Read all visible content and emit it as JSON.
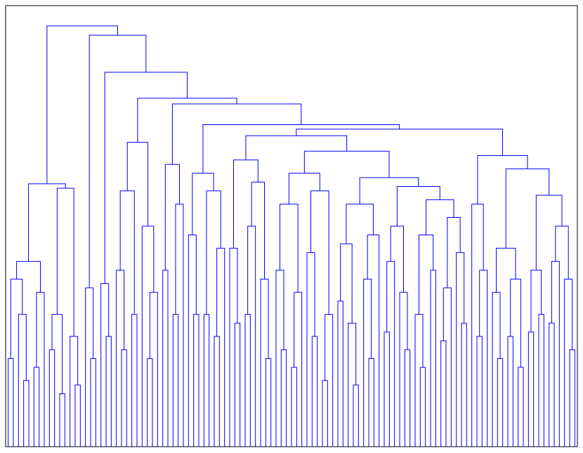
{
  "chart_data": {
    "type": "dendrogram",
    "color": "#0000ff",
    "ylim": [
      0,
      100
    ],
    "tree": [
      95.4,
      [
        59.6,
        [
          42,
          [
            38,
            [
              20,
              0,
              0
            ],
            [
              30,
              0,
              [
                15,
                0,
                0
              ]
            ]
          ],
          [
            35,
            [
              18,
              0,
              0
            ],
            0
          ]
        ],
        [
          58.6,
          [
            30,
            [
              22,
              0,
              0
            ],
            [
              12,
              0,
              0
            ]
          ],
          [
            25,
            0,
            [
              14,
              0,
              0
            ]
          ]
        ]
      ],
      [
        93.3,
        [
          36,
          0,
          [
            20,
            0,
            0
          ]
        ],
        [
          84.9,
          [
            37,
            0,
            [
              25,
              0,
              0
            ]
          ],
          [
            79,
            [
              69,
              [
                58,
                [
                  40,
                  0,
                  [
                    22,
                    0,
                    0
                  ]
                ],
                [
                  30,
                  0,
                  0
                ]
              ],
              [
                50,
                0,
                [
                  35,
                  [
                    20,
                    0,
                    0
                  ],
                  0
                ]
              ]
            ],
            [
              77.7,
              [
                64,
                [
                  40,
                  0,
                  0
                ],
                [
                  55,
                  [
                    30,
                    0,
                    0
                  ],
                  0
                ]
              ],
              [
                73,
                [
                  62,
                  [
                    48,
                    0,
                    [
                      30,
                      0,
                      0
                    ]
                  ],
                  [
                    58,
                    [
                      30,
                      0,
                      0
                    ],
                    [
                      45,
                      [
                        25,
                        0,
                        0
                      ],
                      0
                    ]
                  ]
                ],
                [
                  72,
                  [
                    70.5,
                    [
                      65,
                      [
                        45,
                        0,
                        [
                          28,
                          0,
                          0
                        ]
                      ],
                      [
                        60,
                        [
                          50,
                          [
                            30,
                            0,
                            0
                          ],
                          0
                        ],
                        [
                          38,
                          0,
                          [
                            20,
                            0,
                            0
                          ]
                        ]
                      ]
                    ],
                    [
                      67,
                      [
                        62,
                        [
                          55,
                          [
                            40,
                            0,
                            [
                              22,
                              0,
                              0
                            ]
                          ],
                          [
                            35,
                            [
                              18,
                              0,
                              0
                            ],
                            0
                          ]
                        ],
                        [
                          58,
                          [
                            44,
                            0,
                            [
                              25,
                              0,
                              0
                            ]
                          ],
                          [
                            30,
                            [
                              15,
                              0,
                              0
                            ],
                            0
                          ]
                        ]
                      ],
                      [
                        61,
                        [
                          55,
                          [
                            46,
                            [
                              33,
                              0,
                              0
                            ],
                            [
                              28,
                              0,
                              [
                                14,
                                0,
                                0
                              ]
                            ]
                          ],
                          [
                            48,
                            [
                              38,
                              0,
                              [
                                20,
                                0,
                                0
                              ]
                            ],
                            0
                          ]
                        ],
                        [
                          59,
                          [
                            50,
                            [
                              42,
                              [
                                26,
                                0,
                                0
                              ],
                              0
                            ],
                            [
                              35,
                              0,
                              [
                                22,
                                0,
                                0
                              ]
                            ]
                          ],
                          [
                            56,
                            [
                              48,
                              [
                                30,
                                0,
                                [
                                  18,
                                  0,
                                  0
                                ]
                              ],
                              [
                                40,
                                0,
                                0
                              ]
                            ],
                            [
                              52,
                              [
                                36,
                                [
                                  24,
                                  0,
                                  0
                                ],
                                0
                              ],
                              [
                                44,
                                0,
                                [
                                  28,
                                  0,
                                  0
                                ]
                              ]
                            ]
                          ]
                        ]
                      ]
                    ]
                  ],
                  [
                    66,
                    [
                      55,
                      0,
                      [
                        40,
                        [
                          25,
                          0,
                          0
                        ],
                        0
                      ]
                    ],
                    [
                      63,
                      [
                        45,
                        [
                          35,
                          0,
                          [
                            20,
                            0,
                            0
                          ]
                        ],
                        [
                          38,
                          [
                            25,
                            0,
                            0
                          ],
                          [
                            18,
                            0,
                            0
                          ]
                        ]
                      ],
                      [
                        57,
                        [
                          40,
                          [
                            26,
                            0,
                            0
                          ],
                          [
                            30,
                            0,
                            0
                          ]
                        ],
                        [
                          50,
                          [
                            42,
                            [
                              28,
                              0,
                              0
                            ],
                            0
                          ],
                          [
                            38,
                            0,
                            [
                              22,
                              0,
                              0
                            ]
                          ]
                        ]
                      ]
                    ]
                  ]
                ]
              ]
            ]
          ]
        ]
      ]
    ]
  }
}
